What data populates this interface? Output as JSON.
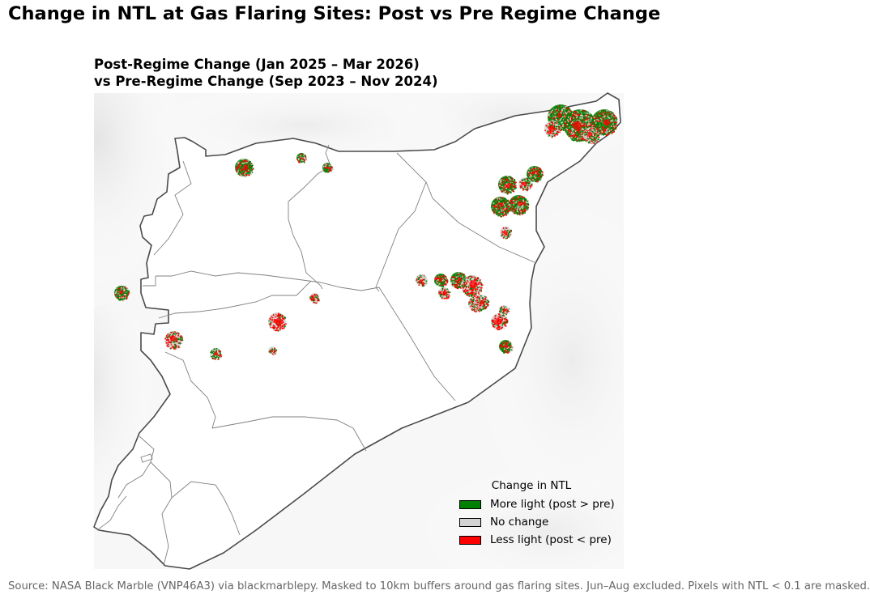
{
  "title": "Change in NTL at Gas Flaring Sites: Post vs Pre Regime Change",
  "subtitle_line1": "Post-Regime Change (Jan 2025 – Mar 2026)",
  "subtitle_line2": "vs Pre-Regime Change (Sep 2023 – Nov 2024)",
  "legend": {
    "title": "Change in NTL",
    "placement": "lower-right",
    "items": [
      {
        "label": "More light (post > pre)",
        "color": "#008000"
      },
      {
        "label": "No change",
        "color": "#d3d3d3"
      },
      {
        "label": "Less light (post < pre)",
        "color": "#ff0000"
      }
    ]
  },
  "source": "Source: NASA Black Marble (VNP46A3) via blackmarblepy. Masked to 10km buffers around gas flaring sites. Jun–Aug excluded. Pixels with NTL < 0.1 are masked.",
  "colors": {
    "more_light": "#008000",
    "no_change": "#d3d3d3",
    "less_light": "#ff0000",
    "border": "#4a4a4a",
    "admin_line": "#808080"
  },
  "map_layers": [
    "terrain-hillshade",
    "country-border",
    "admin-boundaries",
    "flaring-site-clusters"
  ]
}
